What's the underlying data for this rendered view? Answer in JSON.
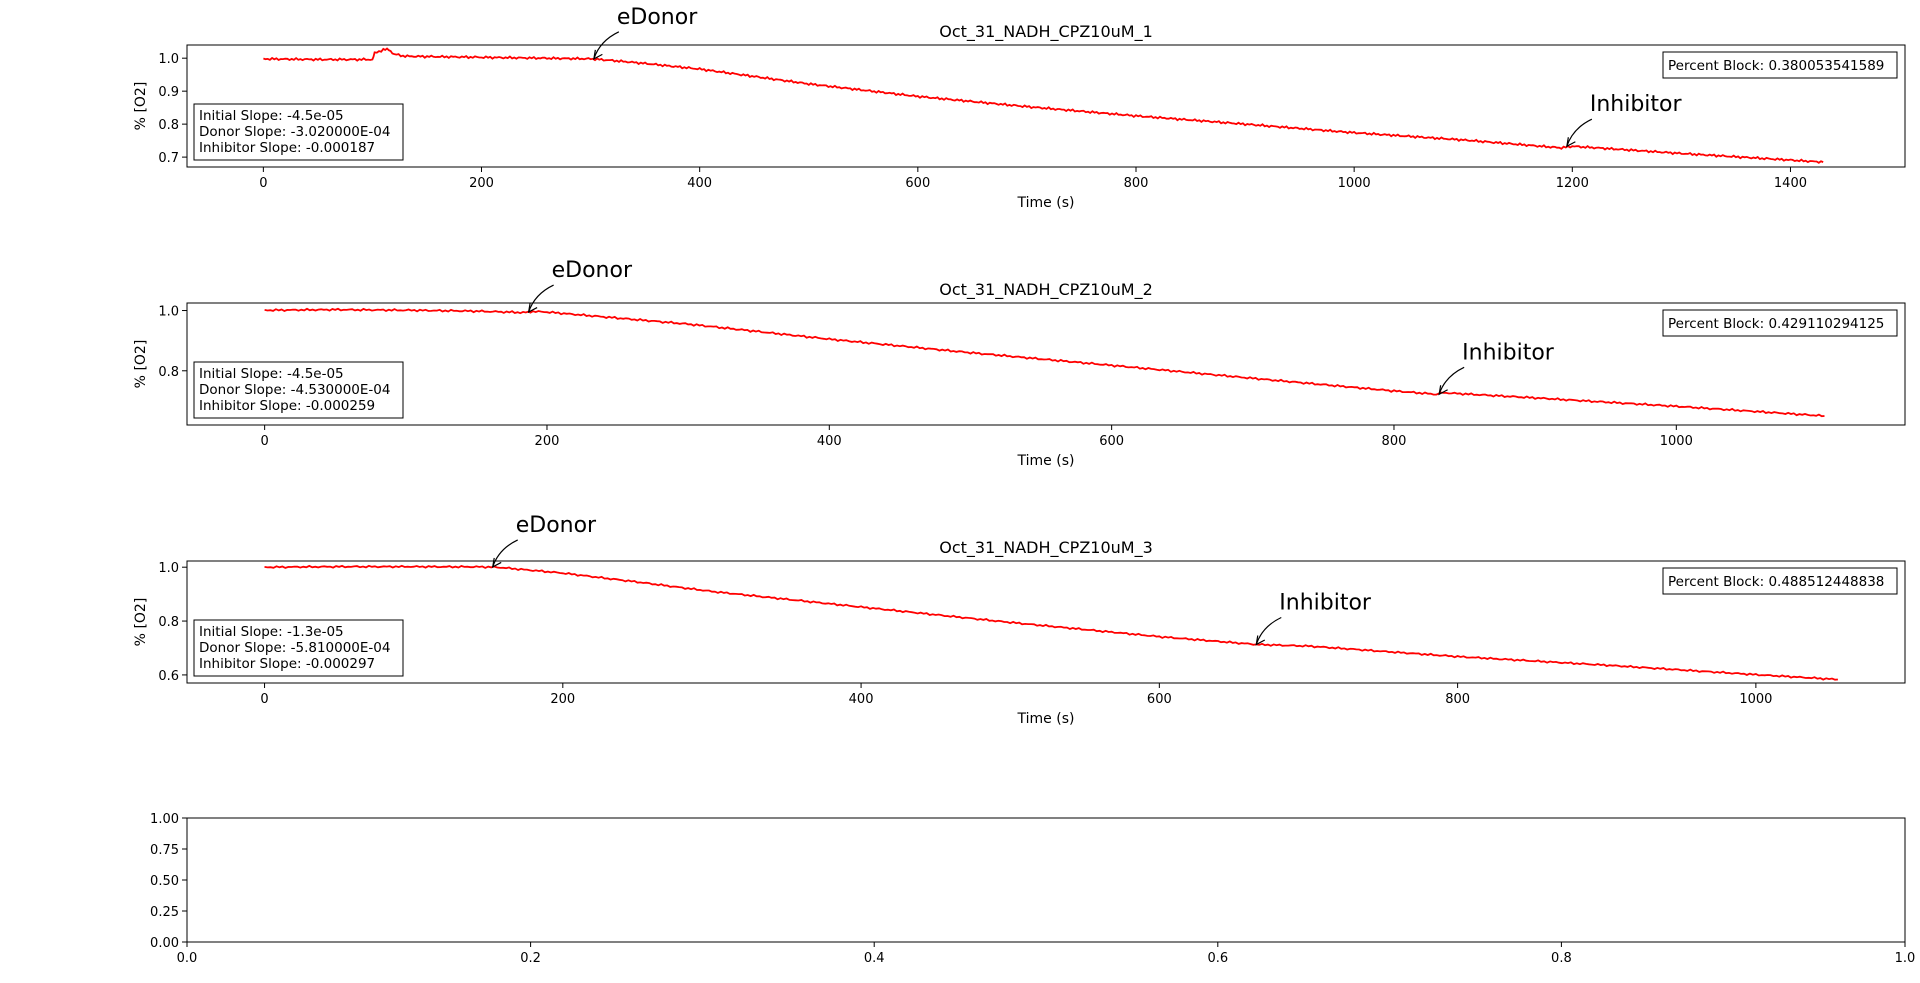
{
  "figure": {
    "background": "#ffffff"
  },
  "chart_data": [
    {
      "type": "line",
      "title": "Oct_31_NADH_CPZ10uM_1",
      "xlabel": "Time (s)",
      "ylabel": "% [O2]",
      "xlim": [
        -70,
        1505
      ],
      "ylim": [
        0.67,
        1.04
      ],
      "xticks": [
        0,
        200,
        400,
        600,
        800,
        1000,
        1200,
        1400
      ],
      "xtick_labels": [
        "0",
        "200",
        "400",
        "600",
        "800",
        "1000",
        "1200",
        "1400"
      ],
      "yticks": [
        0.7,
        0.8,
        0.9,
        1.0
      ],
      "ytick_labels": [
        "0.7",
        "0.8",
        "0.9",
        "1.0"
      ],
      "series": [
        {
          "color": "#ff0000",
          "x": [
            0,
            50,
            100,
            102,
            110,
            115,
            120,
            130,
            300,
            320,
            350,
            400,
            500,
            600,
            700,
            800,
            900,
            1000,
            1100,
            1190,
            1200,
            1300,
            1430
          ],
          "y": [
            0.998,
            0.996,
            0.996,
            1.015,
            1.026,
            1.026,
            1.012,
            1.006,
            0.998,
            0.993,
            0.984,
            0.967,
            0.922,
            0.884,
            0.853,
            0.825,
            0.8,
            0.774,
            0.752,
            0.728,
            0.733,
            0.711,
            0.685
          ]
        }
      ],
      "annotations": [
        {
          "text": "eDonor",
          "x": 303,
          "y": 0.998
        },
        {
          "text": "Inhibitor",
          "x": 1195,
          "y": 0.733
        }
      ],
      "slope_box": {
        "lines": [
          "Initial Slope: -4.5e-05",
          "Donor Slope: -3.020000E-04",
          "Inhibitor Slope: -0.000187"
        ],
        "position": "lower-left"
      },
      "percent_block": {
        "text": "Percent Block: 0.380053541589",
        "position": "upper-right"
      }
    },
    {
      "type": "line",
      "title": "Oct_31_NADH_CPZ10uM_2",
      "xlabel": "Time (s)",
      "ylabel": "% [O2]",
      "xlim": [
        -55,
        1162
      ],
      "ylim": [
        0.62,
        1.025
      ],
      "xticks": [
        0,
        200,
        400,
        600,
        800,
        1000
      ],
      "xtick_labels": [
        "0",
        "200",
        "400",
        "600",
        "800",
        "1000"
      ],
      "yticks": [
        0.8,
        1.0
      ],
      "ytick_labels": [
        "0.8",
        "1.0"
      ],
      "series": [
        {
          "color": "#ff0000",
          "x": [
            0,
            50,
            100,
            150,
            185,
            190,
            200,
            250,
            300,
            400,
            500,
            600,
            700,
            800,
            830,
            835,
            900,
            1000,
            1105
          ],
          "y": [
            1.001,
            1.003,
            1.001,
            0.998,
            0.993,
            0.997,
            0.995,
            0.975,
            0.955,
            0.905,
            0.86,
            0.818,
            0.775,
            0.733,
            0.722,
            0.727,
            0.71,
            0.682,
            0.65
          ]
        }
      ],
      "annotations": [
        {
          "text": "eDonor",
          "x": 187,
          "y": 0.995
        },
        {
          "text": "Inhibitor",
          "x": 832,
          "y": 0.722
        }
      ],
      "slope_box": {
        "lines": [
          "Initial Slope: -4.5e-05",
          "Donor Slope: -4.530000E-04",
          "Inhibitor Slope: -0.000259"
        ],
        "position": "lower-left"
      },
      "percent_block": {
        "text": "Percent Block: 0.429110294125",
        "position": "upper-right"
      }
    },
    {
      "type": "line",
      "title": "Oct_31_NADH_CPZ10uM_3",
      "xlabel": "Time (s)",
      "ylabel": "% [O2]",
      "xlim": [
        -52,
        1100
      ],
      "ylim": [
        0.57,
        1.023
      ],
      "xticks": [
        0,
        200,
        400,
        600,
        800,
        1000
      ],
      "xtick_labels": [
        "0",
        "200",
        "400",
        "600",
        "800",
        "1000"
      ],
      "yticks": [
        0.6,
        0.8,
        1.0
      ],
      "ytick_labels": [
        "0.6",
        "0.8",
        "1.0"
      ],
      "series": [
        {
          "color": "#ff0000",
          "x": [
            0,
            50,
            100,
            150,
            160,
            200,
            250,
            300,
            400,
            500,
            600,
            665,
            700,
            800,
            900,
            1000,
            1055
          ],
          "y": [
            1.0,
            1.002,
            1.002,
            1.001,
            0.998,
            0.978,
            0.945,
            0.91,
            0.852,
            0.795,
            0.742,
            0.713,
            0.707,
            0.668,
            0.636,
            0.601,
            0.583
          ]
        }
      ],
      "annotations": [
        {
          "text": "eDonor",
          "x": 153,
          "y": 1.001
        },
        {
          "text": "Inhibitor",
          "x": 665,
          "y": 0.713
        }
      ],
      "slope_box": {
        "lines": [
          "Initial Slope: -1.3e-05",
          "Donor Slope: -5.810000E-04",
          "Inhibitor Slope: -0.000297"
        ],
        "position": "lower-left"
      },
      "percent_block": {
        "text": "Percent Block: 0.488512448838",
        "position": "upper-right"
      }
    },
    {
      "type": "line",
      "title": "",
      "xlabel": "",
      "ylabel": "",
      "xlim": [
        0,
        1
      ],
      "ylim": [
        0,
        1
      ],
      "xticks": [
        0.0,
        0.2,
        0.4,
        0.6,
        0.8,
        1.0
      ],
      "xtick_labels": [
        "0.0",
        "0.2",
        "0.4",
        "0.6",
        "0.8",
        "1.0"
      ],
      "yticks": [
        0.0,
        0.25,
        0.5,
        0.75,
        1.0
      ],
      "ytick_labels": [
        "0.00",
        "0.25",
        "0.50",
        "0.75",
        "1.00"
      ],
      "series": []
    }
  ]
}
